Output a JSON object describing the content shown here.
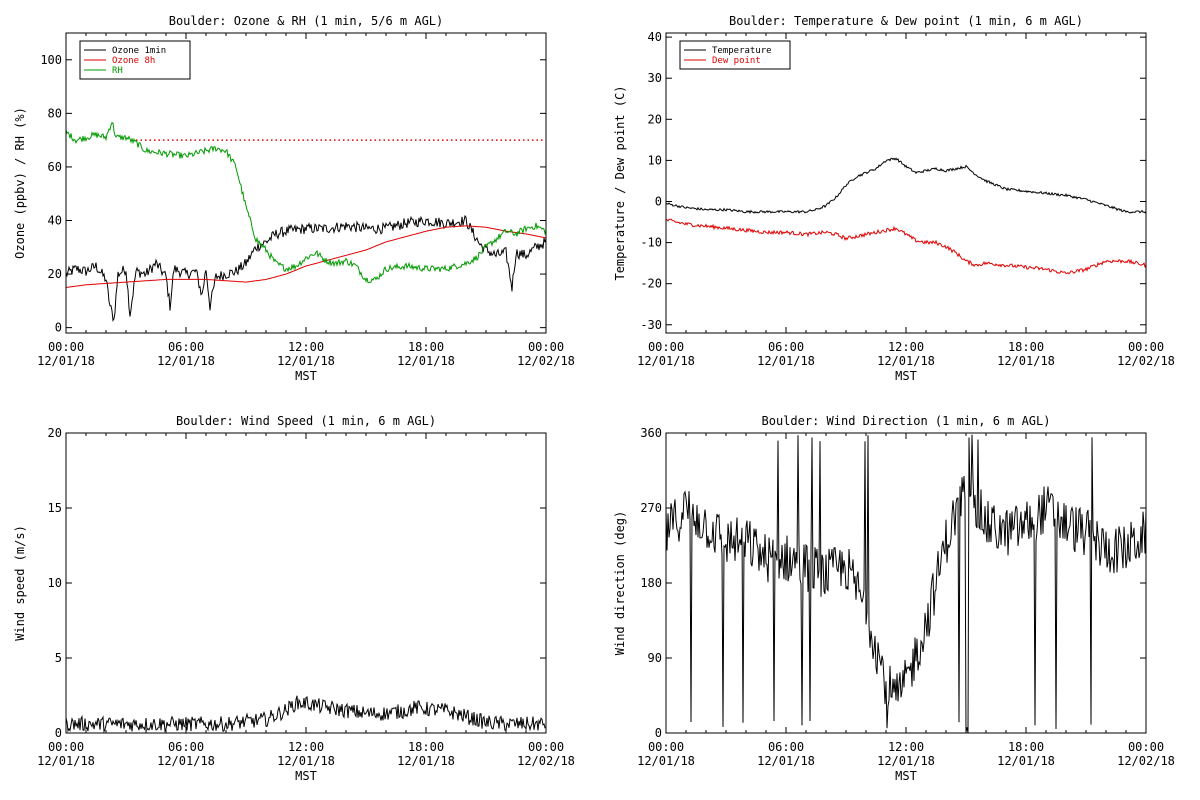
{
  "chart_data": [
    {
      "type": "line",
      "title": "Boulder: Ozone & RH (1 min, 5/6 m AGL)",
      "xlabel": "MST",
      "ylabel": "Ozone (ppbv) / RH (%)",
      "x_ticks": [
        {
          "hour": 0,
          "time": "00:00",
          "date": "12/01/18"
        },
        {
          "hour": 6,
          "time": "06:00",
          "date": "12/01/18"
        },
        {
          "hour": 12,
          "time": "12:00",
          "date": "12/01/18"
        },
        {
          "hour": 18,
          "time": "18:00",
          "date": "12/01/18"
        },
        {
          "hour": 24,
          "time": "00:00",
          "date": "12/02/18"
        }
      ],
      "xlim": [
        0,
        24
      ],
      "ylim": [
        -2,
        110
      ],
      "y_ticks": [
        "0",
        "20",
        "40",
        "60",
        "80",
        "100"
      ],
      "y_tick_values": [
        0,
        20,
        40,
        60,
        80,
        100
      ],
      "legend_position": "top-left",
      "reference_line": {
        "y": 70,
        "color": "#e00000",
        "style": "dotted"
      },
      "series": [
        {
          "name": "Ozone 1min",
          "color": "#000000",
          "noise": 2,
          "x": [
            0,
            0.5,
            1,
            1.5,
            2,
            2.2,
            2.4,
            2.6,
            3,
            3.2,
            3.5,
            4,
            4.5,
            5,
            5.2,
            5.4,
            6,
            6.5,
            6.8,
            7,
            7.2,
            7.5,
            8,
            8.5,
            9,
            9.5,
            10,
            10.5,
            11,
            12,
            13,
            14,
            15,
            16,
            17,
            18,
            19,
            20,
            20.3,
            20.7,
            21,
            21.5,
            22,
            22.3,
            22.5,
            23,
            23.5,
            24
          ],
          "y": [
            20,
            22,
            21,
            23,
            18,
            8,
            3,
            20,
            22,
            5,
            21,
            20,
            24,
            19,
            8,
            22,
            20,
            21,
            12,
            22,
            8,
            19,
            20,
            21,
            24,
            30,
            32,
            35,
            36,
            37,
            37,
            38,
            37,
            37,
            39,
            40,
            39,
            40,
            36,
            31,
            29,
            27,
            28,
            15,
            28,
            27,
            30,
            32
          ]
        },
        {
          "name": "Ozone 8h",
          "color": "#e00000",
          "noise": 0,
          "x": [
            0,
            1,
            2,
            3,
            4,
            5,
            6,
            7,
            8,
            9,
            10,
            11,
            12,
            13,
            14,
            15,
            16,
            17,
            18,
            19,
            20,
            21,
            22,
            23,
            24
          ],
          "y": [
            15,
            16,
            16.5,
            17,
            17.5,
            18,
            18,
            18,
            17.5,
            17,
            18,
            20,
            23,
            25,
            27,
            29,
            32,
            34,
            36,
            37.5,
            38,
            37.5,
            36,
            35,
            33.5
          ]
        },
        {
          "name": "RH",
          "color": "#009900",
          "noise": 1.2,
          "x": [
            0,
            0.5,
            1,
            1.5,
            2,
            2.3,
            2.5,
            3,
            3.5,
            4,
            5,
            6,
            7,
            7.5,
            8,
            8.5,
            9,
            9.5,
            10,
            10.5,
            11,
            11.5,
            12,
            12.5,
            13,
            13.5,
            14,
            14.5,
            15,
            15.5,
            16,
            17,
            18,
            19,
            20,
            20.5,
            21,
            22,
            22.5,
            23,
            23.5,
            24
          ],
          "y": [
            73,
            70,
            71,
            72,
            71,
            77,
            71,
            71,
            69,
            66,
            65,
            64,
            66,
            67,
            66,
            60,
            45,
            33,
            29,
            24,
            22,
            23,
            26,
            28,
            25,
            24,
            25,
            23,
            18,
            18,
            22,
            23,
            22,
            22,
            24,
            26,
            30,
            36,
            35,
            37,
            38,
            36
          ]
        }
      ]
    },
    {
      "type": "line",
      "title": "Boulder: Temperature & Dew point (1 min, 6 m AGL)",
      "xlabel": "MST",
      "ylabel": "Temperature / Dew point (C)",
      "x_ticks": [
        {
          "hour": 0,
          "time": "00:00",
          "date": "12/01/18"
        },
        {
          "hour": 6,
          "time": "06:00",
          "date": "12/01/18"
        },
        {
          "hour": 12,
          "time": "12:00",
          "date": "12/01/18"
        },
        {
          "hour": 18,
          "time": "18:00",
          "date": "12/01/18"
        },
        {
          "hour": 24,
          "time": "00:00",
          "date": "12/02/18"
        }
      ],
      "xlim": [
        0,
        24
      ],
      "ylim": [
        -32,
        41
      ],
      "y_ticks": [
        "-30",
        "-20",
        "-10",
        "0",
        "10",
        "20",
        "30",
        "40"
      ],
      "y_tick_values": [
        -30,
        -20,
        -10,
        0,
        10,
        20,
        30,
        40
      ],
      "legend_position": "top-left",
      "series": [
        {
          "name": "Temperature",
          "color": "#000000",
          "noise": 0.3,
          "x": [
            0,
            1,
            2,
            3,
            4,
            5,
            6,
            7,
            7.5,
            8,
            8.5,
            9,
            9.5,
            10,
            10.5,
            11,
            11.5,
            12,
            12.5,
            13,
            13.5,
            14,
            14.5,
            15,
            15.5,
            16,
            17,
            18,
            19,
            20,
            21,
            22,
            23,
            24
          ],
          "y": [
            -0.5,
            -1.5,
            -2,
            -2,
            -2.5,
            -2.5,
            -2.5,
            -2.5,
            -2,
            -1,
            1,
            4,
            6,
            7,
            8,
            10,
            10.5,
            8.5,
            7,
            7.5,
            8,
            7.5,
            8,
            8.5,
            6.5,
            5,
            3,
            2.5,
            2,
            1.5,
            0.5,
            -1,
            -2.5,
            -2.5
          ]
        },
        {
          "name": "Dew point",
          "color": "#e00000",
          "noise": 0.45,
          "x": [
            0,
            1,
            2,
            3,
            4,
            5,
            6,
            7,
            8,
            8.5,
            9,
            10,
            11,
            11.5,
            12,
            12.5,
            13,
            13.5,
            14,
            14.5,
            15,
            15.5,
            16,
            17,
            18,
            19,
            20,
            21,
            21.5,
            22,
            23,
            24
          ],
          "y": [
            -4.5,
            -5.5,
            -6,
            -6.5,
            -7,
            -7.5,
            -7.5,
            -8,
            -7.5,
            -8,
            -9,
            -8,
            -7,
            -6.5,
            -8,
            -9.5,
            -10,
            -10,
            -11,
            -12.5,
            -14.5,
            -15.5,
            -15,
            -15.5,
            -16,
            -16.5,
            -17.5,
            -16.5,
            -15.5,
            -14.5,
            -14.5,
            -15.5
          ]
        }
      ]
    },
    {
      "type": "line",
      "title": "Boulder: Wind Speed (1 min, 6 m AGL)",
      "xlabel": "MST",
      "ylabel": "Wind speed (m/s)",
      "x_ticks": [
        {
          "hour": 0,
          "time": "00:00",
          "date": "12/01/18"
        },
        {
          "hour": 6,
          "time": "06:00",
          "date": "12/01/18"
        },
        {
          "hour": 12,
          "time": "12:00",
          "date": "12/01/18"
        },
        {
          "hour": 18,
          "time": "18:00",
          "date": "12/01/18"
        },
        {
          "hour": 24,
          "time": "00:00",
          "date": "12/02/18"
        }
      ],
      "xlim": [
        0,
        24
      ],
      "ylim": [
        0,
        20
      ],
      "y_ticks": [
        "0",
        "5",
        "10",
        "15",
        "20"
      ],
      "y_tick_values": [
        0,
        5,
        10,
        15,
        20
      ],
      "series": [
        {
          "name": "",
          "color": "#000000",
          "noise": 0.5,
          "floor": 0,
          "x": [
            0,
            2,
            4,
            6,
            8,
            10,
            11,
            11.5,
            12,
            13,
            14,
            15,
            16,
            17,
            17.5,
            18,
            19,
            20,
            21,
            22,
            23,
            24
          ],
          "y": [
            0.6,
            0.6,
            0.6,
            0.6,
            0.6,
            0.9,
            1.5,
            2,
            2,
            1.7,
            1.5,
            1.3,
            1.3,
            1.5,
            1.7,
            1.6,
            1.5,
            1.1,
            0.7,
            0.6,
            0.6,
            0.6
          ]
        }
      ]
    },
    {
      "type": "line",
      "title": "Boulder: Wind Direction (1 min, 6 m AGL)",
      "xlabel": "MST",
      "ylabel": "Wind direction (deg)",
      "x_ticks": [
        {
          "hour": 0,
          "time": "00:00",
          "date": "12/01/18"
        },
        {
          "hour": 6,
          "time": "06:00",
          "date": "12/01/18"
        },
        {
          "hour": 12,
          "time": "12:00",
          "date": "12/01/18"
        },
        {
          "hour": 18,
          "time": "18:00",
          "date": "12/01/18"
        },
        {
          "hour": 24,
          "time": "00:00",
          "date": "12/02/18"
        }
      ],
      "xlim": [
        0,
        24
      ],
      "ylim": [
        0,
        360
      ],
      "y_ticks": [
        "0",
        "90",
        "180",
        "270",
        "360"
      ],
      "y_tick_values": [
        0,
        90,
        180,
        270,
        360
      ],
      "series": [
        {
          "name": "",
          "color": "#000000",
          "noise": 30,
          "floor": 0,
          "ceil": 360,
          "spike_rate": 0.06,
          "x": [
            0,
            1,
            2,
            3,
            4,
            5,
            6,
            7,
            8,
            9,
            10,
            11,
            11.5,
            12,
            13,
            14,
            15,
            16,
            17,
            18,
            19,
            20,
            21,
            22,
            23,
            24
          ],
          "y": [
            240,
            270,
            250,
            230,
            230,
            210,
            210,
            200,
            190,
            200,
            150,
            60,
            40,
            60,
            130,
            230,
            300,
            250,
            240,
            250,
            270,
            250,
            240,
            220,
            220,
            240
          ]
        }
      ]
    }
  ]
}
